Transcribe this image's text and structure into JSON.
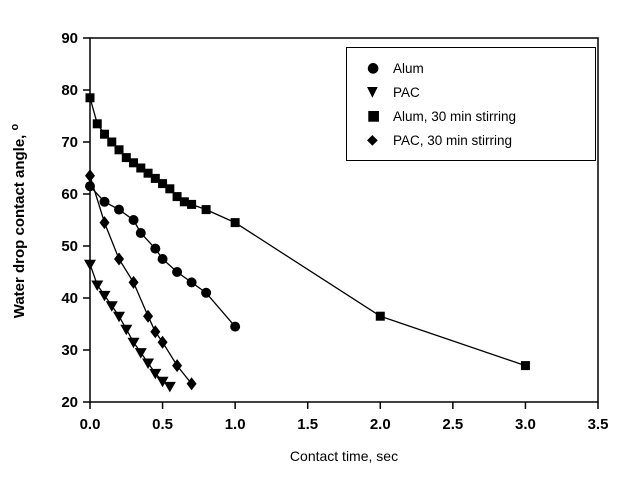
{
  "chart_data": {
    "type": "line",
    "title": "",
    "xlabel": "Contact time, sec",
    "ylabel": "Water drop contact angle,",
    "ylabel_sup": "o",
    "xlim": [
      0,
      3.5
    ],
    "ylim": [
      20,
      90
    ],
    "x_ticks": [
      "0.0",
      "0.5",
      "1.0",
      "1.5",
      "2.0",
      "2.5",
      "3.0",
      "3.5"
    ],
    "y_ticks": [
      "20",
      "30",
      "40",
      "50",
      "60",
      "70",
      "80",
      "90"
    ],
    "grid": false,
    "legend_position": "upper-right",
    "line_color": "#000000",
    "marker_color": "#000000",
    "background_color": "#ffffff",
    "series": [
      {
        "name": "Alum",
        "marker": "circle",
        "glyph": "●",
        "points": [
          [
            0,
            61.5
          ],
          [
            0.1,
            58.5
          ],
          [
            0.2,
            57
          ],
          [
            0.3,
            55
          ],
          [
            0.35,
            52.5
          ],
          [
            0.45,
            49.5
          ],
          [
            0.5,
            47.5
          ],
          [
            0.6,
            45
          ],
          [
            0.7,
            43
          ],
          [
            0.8,
            41
          ],
          [
            1.0,
            34.5
          ]
        ]
      },
      {
        "name": "PAC",
        "marker": "triangle-down",
        "glyph": "▼",
        "points": [
          [
            0,
            46.5
          ],
          [
            0.05,
            42.5
          ],
          [
            0.1,
            40.5
          ],
          [
            0.15,
            38.5
          ],
          [
            0.2,
            36.5
          ],
          [
            0.25,
            34
          ],
          [
            0.3,
            31.5
          ],
          [
            0.35,
            29.5
          ],
          [
            0.4,
            27.5
          ],
          [
            0.45,
            25.5
          ],
          [
            0.5,
            24
          ],
          [
            0.55,
            23
          ]
        ]
      },
      {
        "name": "Alum, 30 min stirring",
        "marker": "square",
        "glyph": "■",
        "points": [
          [
            0,
            78.5
          ],
          [
            0.05,
            73.5
          ],
          [
            0.1,
            71.5
          ],
          [
            0.15,
            70
          ],
          [
            0.2,
            68.5
          ],
          [
            0.25,
            67
          ],
          [
            0.3,
            66
          ],
          [
            0.35,
            65
          ],
          [
            0.4,
            64
          ],
          [
            0.45,
            63
          ],
          [
            0.5,
            62
          ],
          [
            0.55,
            61
          ],
          [
            0.6,
            59.5
          ],
          [
            0.65,
            58.5
          ],
          [
            0.7,
            58
          ],
          [
            0.8,
            57
          ],
          [
            1.0,
            54.5
          ],
          [
            2.0,
            36.5
          ],
          [
            3.0,
            27
          ]
        ]
      },
      {
        "name": "PAC, 30 min stirring",
        "marker": "diamond",
        "glyph": "◆",
        "points": [
          [
            0,
            63.5
          ],
          [
            0.1,
            54.5
          ],
          [
            0.2,
            47.5
          ],
          [
            0.3,
            43
          ],
          [
            0.4,
            36.5
          ],
          [
            0.45,
            33.5
          ],
          [
            0.5,
            31.5
          ],
          [
            0.6,
            27
          ],
          [
            0.7,
            23.5
          ]
        ]
      }
    ]
  }
}
